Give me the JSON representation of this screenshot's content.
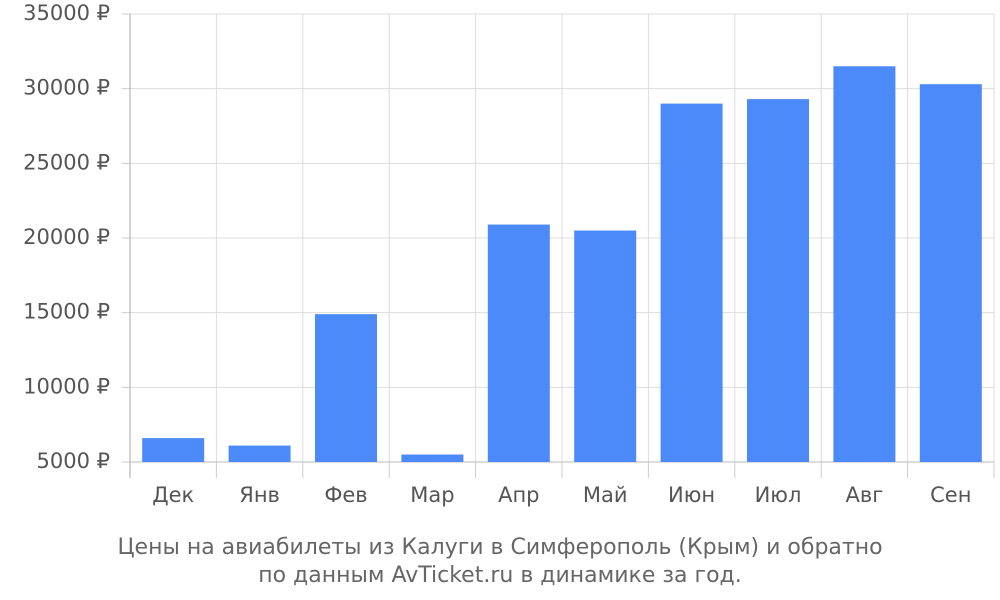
{
  "chart_data": {
    "type": "bar",
    "caption": [
      "Цены на авиабилеты из Калуги в Симферополь (Крым) и обратно",
      "по данным AvTicket.ru в динамике за год."
    ],
    "categories": [
      "Дек",
      "Янв",
      "Фев",
      "Мар",
      "Апр",
      "Май",
      "Июн",
      "Июл",
      "Авг",
      "Сен"
    ],
    "values": [
      6600,
      6100,
      14900,
      5500,
      20900,
      20500,
      29000,
      29300,
      31500,
      30300
    ],
    "color": "#4d8af9",
    "ylim": [
      5000,
      35000
    ],
    "yticks": [
      {
        "value": 5000,
        "label": "5000 ₽"
      },
      {
        "value": 10000,
        "label": "10000 ₽"
      },
      {
        "value": 15000,
        "label": "15000 ₽"
      },
      {
        "value": 20000,
        "label": "20000 ₽"
      },
      {
        "value": 25000,
        "label": "25000 ₽"
      },
      {
        "value": 30000,
        "label": "30000 ₽"
      },
      {
        "value": 35000,
        "label": "35000 ₽"
      }
    ],
    "grid": true
  }
}
